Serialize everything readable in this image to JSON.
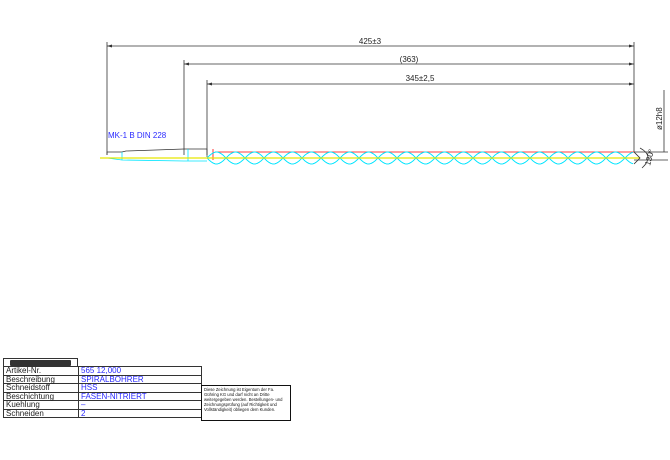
{
  "drawing": {
    "dimensions": {
      "overall_length": "425±3",
      "reference_length": "(363)",
      "flute_length": "345±2,5",
      "diameter": "ø12h8",
      "point_angle": "130°"
    },
    "shank_label": "MK-1 B DIN 228",
    "colors": {
      "axis": "#ffff00",
      "helix": "#00e5ff",
      "edge": "#ff0000",
      "text_blue": "#2a2aff"
    }
  },
  "table": {
    "rows": [
      {
        "key": "Artikel-Nr.",
        "value": "565 12,000"
      },
      {
        "key": "Beschreibung",
        "value": "SPIRALBOHRER"
      },
      {
        "key": "Schneidstoff",
        "value": "HSS"
      },
      {
        "key": "Beschichtung",
        "value": "FASEN-NITRIERT"
      },
      {
        "key": "Kuehlung",
        "value": "–"
      },
      {
        "key": "Schneiden",
        "value": "2"
      }
    ]
  },
  "note": "Diese Zeichnung ist Eigentum der Fa. Gühring KG und darf nicht an Dritte weitergegeben werden. Bestellungen- und Zeichnungsprüfung (auf Richtigkeit und Vollständigkeit) obliegen dem Kunden."
}
